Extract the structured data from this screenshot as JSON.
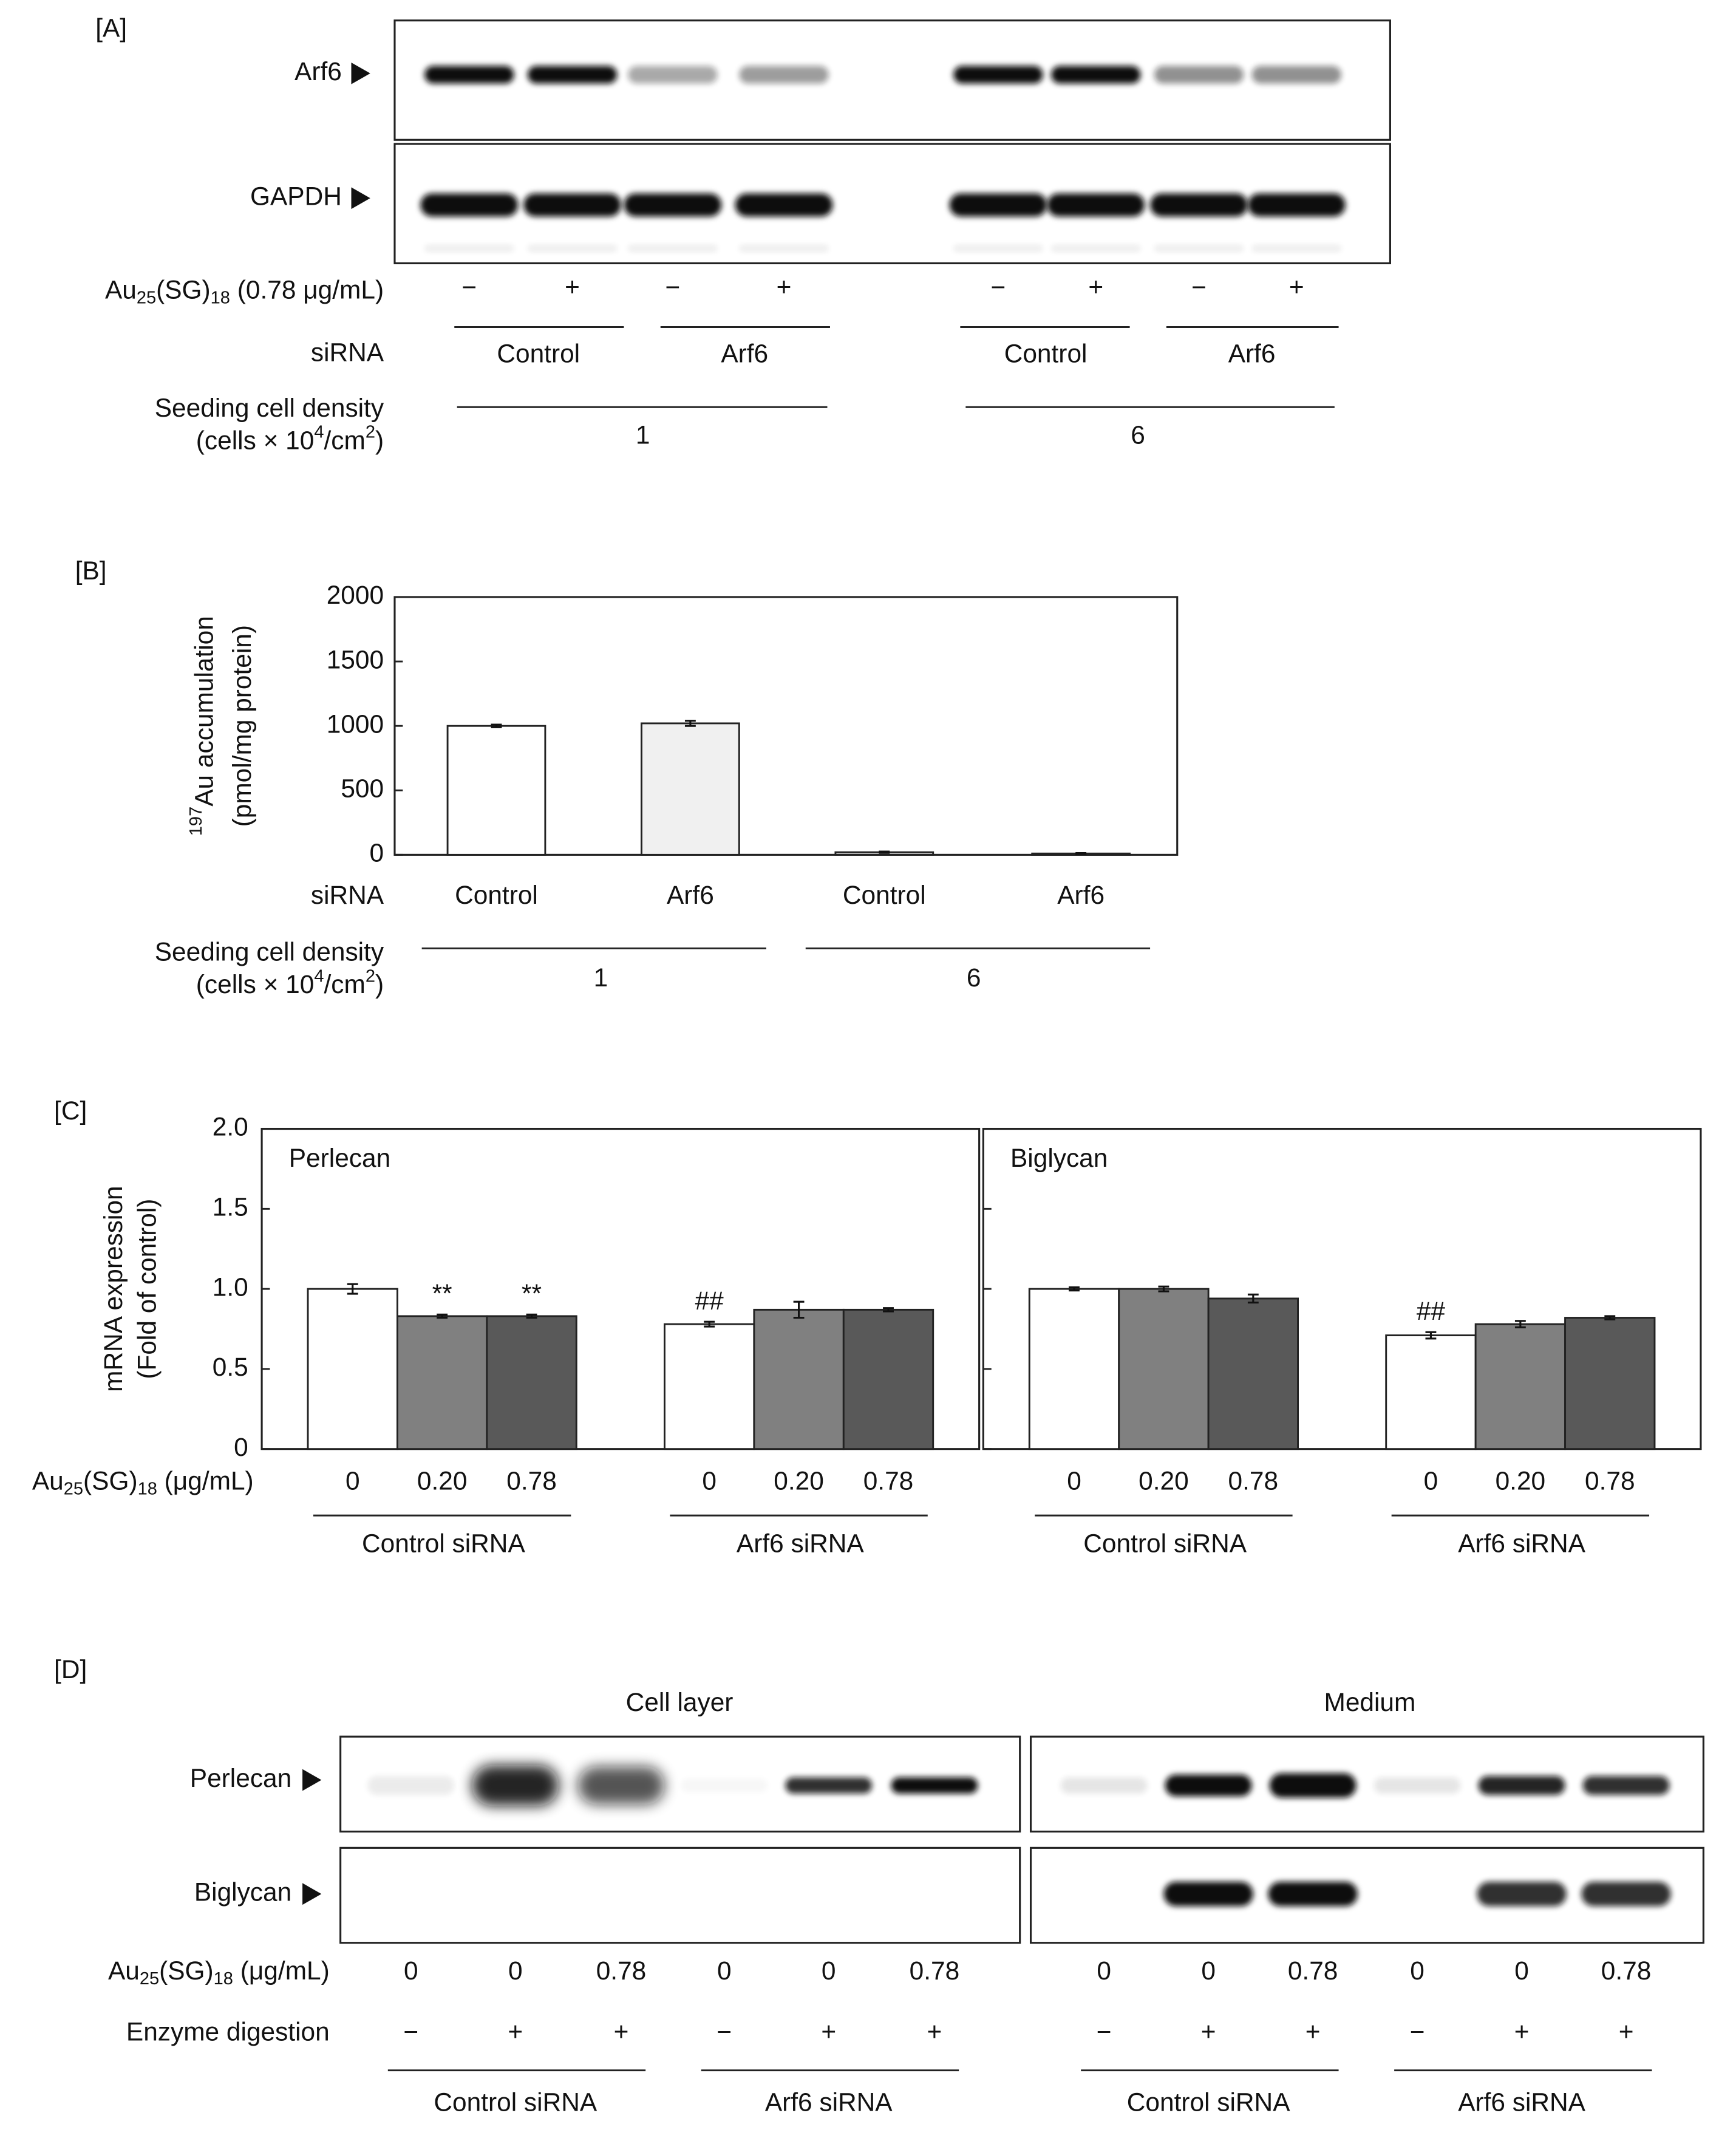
{
  "panel_a": {
    "label": "[A]",
    "rows": [
      "Arf6",
      "GAPDH"
    ],
    "treatment_label": [
      {
        "text": "Au"
      },
      {
        "sub": "25"
      },
      {
        "text": "(SG)"
      },
      {
        "sub": "18"
      },
      {
        "text": " (0.78 μg/mL)"
      }
    ],
    "treatment": [
      "−",
      "+",
      "−",
      "+",
      "−",
      "+",
      "−",
      "+"
    ],
    "sirna_label": "siRNA",
    "sirna": [
      "Control",
      "Arf6",
      "Control",
      "Arf6"
    ],
    "density_label": "Seeding cell density",
    "density_unit": [
      {
        "text": "(cells × 10"
      },
      {
        "sup": "4"
      },
      {
        "text": "/cm"
      },
      {
        "sup": "2"
      },
      {
        "text": ")"
      }
    ],
    "density": [
      "1",
      "6"
    ]
  },
  "chart_data": [
    {
      "type": "bar",
      "label": "[B]",
      "ylabel": [
        [
          {
            "sup": "197"
          },
          {
            "text": "Au accumulation"
          }
        ],
        [
          {
            "text": "(pmol/mg protein)"
          }
        ]
      ],
      "category_label": "siRNA",
      "categories": [
        "Control",
        "Arf6",
        "Control",
        "Arf6"
      ],
      "values": [
        1000,
        1020,
        20,
        10
      ],
      "errors": [
        10,
        20,
        5,
        3
      ],
      "colors": [
        "#ffffff",
        "#f0f0f0",
        "#d9d9d9",
        "#a6a6a6"
      ],
      "ylim": [
        0,
        2000
      ],
      "yticks": [
        0,
        500,
        1000,
        1500,
        2000
      ],
      "group_label": "Seeding cell density",
      "group_unit": [
        {
          "text": "(cells × 10"
        },
        {
          "sup": "4"
        },
        {
          "text": "/cm"
        },
        {
          "sup": "2"
        },
        {
          "text": ")"
        }
      ],
      "groups": [
        "1",
        "6"
      ]
    },
    {
      "type": "bar",
      "label": "[C]",
      "ylabel": [
        [
          {
            "text": "mRNA expression"
          }
        ],
        [
          {
            "text": "(Fold of control)"
          }
        ]
      ],
      "ylim": [
        0,
        2
      ],
      "yticks": [
        0,
        0.5,
        {
          "value": 1,
          "label": "1.0"
        },
        1.5,
        {
          "value": 2,
          "label": "2.0"
        }
      ],
      "x_label": [
        {
          "text": "Au"
        },
        {
          "sub": "25"
        },
        {
          "text": "(SG)"
        },
        {
          "sub": "18"
        },
        {
          "text": " (μg/mL)"
        }
      ],
      "categories": [
        "Control siRNA",
        "Arf6 siRNA"
      ],
      "facets": [
        {
          "title": "Perlecan",
          "series": [
            {
              "name": "0",
              "color": "#ffffff",
              "values": [
                1.0,
                0.78
              ],
              "errors": [
                0.03,
                0.015
              ],
              "significance": [
                null,
                "##"
              ]
            },
            {
              "name": "0.20",
              "color": "#808080",
              "values": [
                0.83,
                0.87
              ],
              "errors": [
                0.01,
                0.05
              ],
              "significance": [
                "**",
                null
              ]
            },
            {
              "name": "0.78",
              "color": "#595959",
              "values": [
                0.83,
                0.87
              ],
              "errors": [
                0.01,
                0.01
              ],
              "significance": [
                "**",
                null
              ]
            }
          ]
        },
        {
          "title": "Biglycan",
          "series": [
            {
              "name": "0",
              "color": "#ffffff",
              "values": [
                1.0,
                0.71
              ],
              "errors": [
                0.01,
                0.02
              ],
              "significance": [
                null,
                "##"
              ]
            },
            {
              "name": "0.20",
              "color": "#808080",
              "values": [
                1.0,
                0.78
              ],
              "errors": [
                0.015,
                0.02
              ],
              "significance": [
                null,
                null
              ]
            },
            {
              "name": "0.78",
              "color": "#595959",
              "values": [
                0.94,
                0.82
              ],
              "errors": [
                0.025,
                0.01
              ],
              "significance": [
                null,
                null
              ]
            }
          ]
        }
      ]
    }
  ],
  "panel_d": {
    "label": "[D]",
    "sections": [
      "Cell layer",
      "Medium"
    ],
    "rows": [
      "Perlecan",
      "Biglycan"
    ],
    "treatment_label": [
      {
        "text": "Au"
      },
      {
        "sub": "25"
      },
      {
        "text": "(SG)"
      },
      {
        "sub": "18"
      },
      {
        "text": " (μg/mL)"
      }
    ],
    "treatment": [
      "0",
      "0",
      "0.78",
      "0",
      "0",
      "0.78",
      "0",
      "0",
      "0.78",
      "0",
      "0",
      "0.78"
    ],
    "enzyme_label": "Enzyme digestion",
    "enzyme": [
      "−",
      "+",
      "+",
      "−",
      "+",
      "+",
      "−",
      "+",
      "+",
      "−",
      "+",
      "+"
    ],
    "groups": [
      "Control siRNA",
      "Arf6 siRNA",
      "Control siRNA",
      "Arf6 siRNA"
    ]
  }
}
